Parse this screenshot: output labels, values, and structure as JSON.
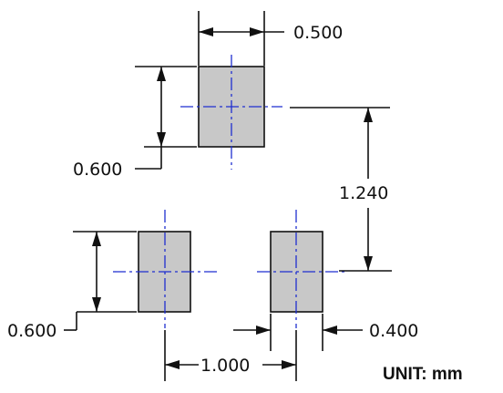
{
  "colors": {
    "pad_fill": "#c8c8c8",
    "outline": "#111111",
    "centerline": "#1f2fd0",
    "background": "#ffffff"
  },
  "dimensions": {
    "pad_width": "0.500",
    "pad_height_top": "0.600",
    "pad_height_bottom": "0.600",
    "vertical_pitch": "1.240",
    "horizontal_pitch": "1.000",
    "bottom_pad_width": "0.400"
  },
  "unit_label": "UNIT: mm"
}
